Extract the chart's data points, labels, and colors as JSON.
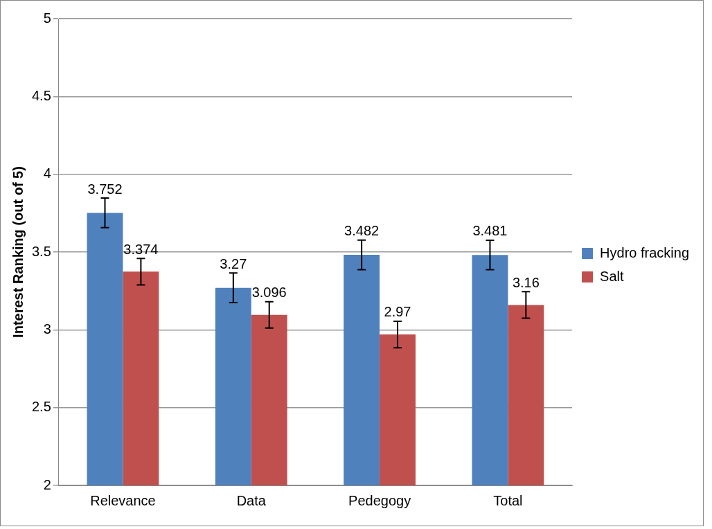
{
  "chart_data": {
    "type": "bar",
    "ylabel": "Interest Ranking (out of 5)",
    "categories": [
      "Relevance",
      "Data",
      "Pedegogy",
      "Total"
    ],
    "series": [
      {
        "name": "Hydro fracking",
        "color": "#4f81bd",
        "values": [
          3.752,
          3.27,
          3.482,
          3.481
        ],
        "errors": [
          0.095,
          0.095,
          0.095,
          0.095
        ]
      },
      {
        "name": "Salt",
        "color": "#c0504d",
        "values": [
          3.374,
          3.096,
          2.97,
          3.16
        ],
        "errors": [
          0.085,
          0.085,
          0.085,
          0.085
        ]
      }
    ],
    "ylim": [
      2,
      5
    ],
    "yticks": [
      2,
      2.5,
      3,
      3.5,
      4,
      4.5,
      5
    ],
    "grid": "y",
    "legend": "right",
    "data_labels": true
  }
}
